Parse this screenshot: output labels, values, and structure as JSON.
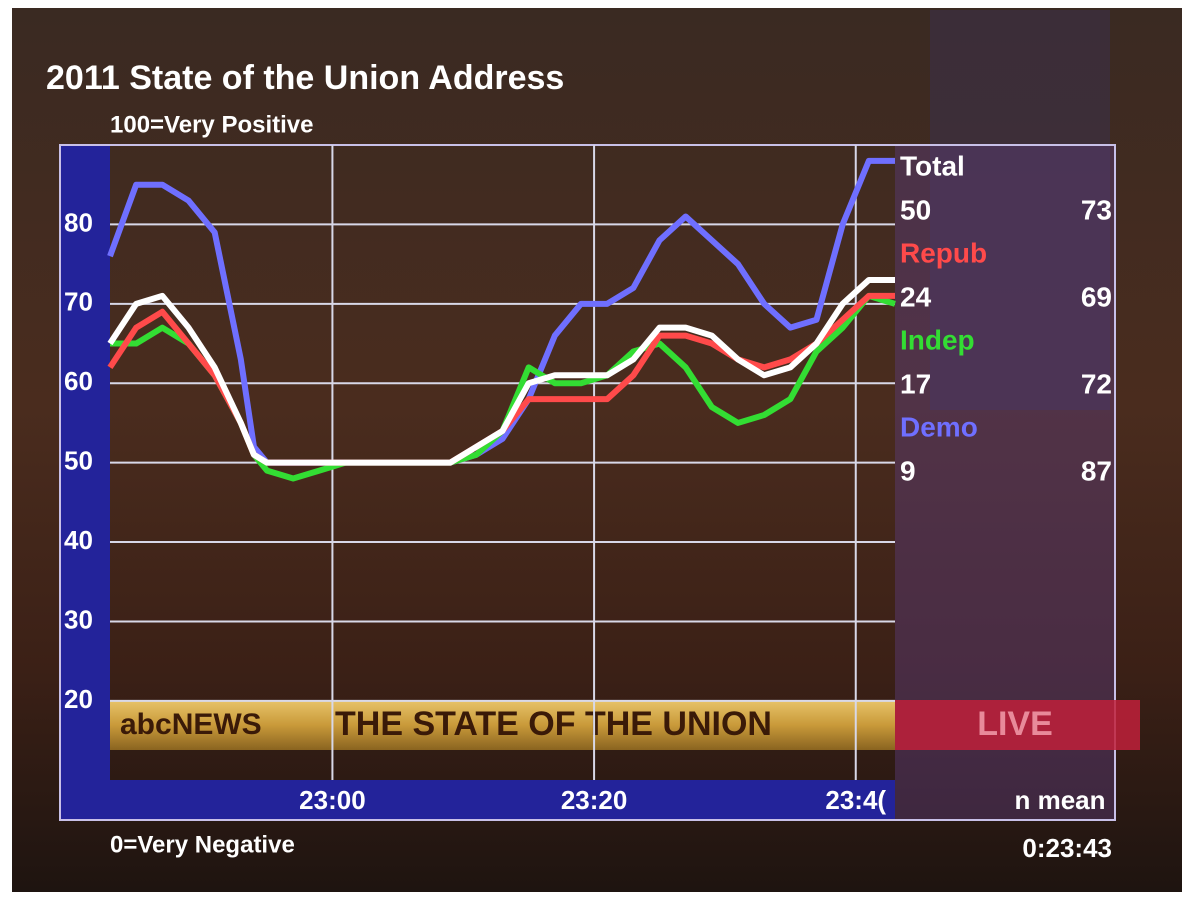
{
  "chart_data": {
    "type": "line",
    "title": "2011 State of the Union Address",
    "top_label": "100=Very Positive",
    "bottom_label": "0=Very Negative",
    "x": [
      1363,
      1365,
      1367,
      1369,
      1371,
      1373,
      1374,
      1375,
      1377,
      1379,
      1381,
      1383,
      1385,
      1387,
      1389,
      1391,
      1393,
      1395,
      1397,
      1399,
      1401,
      1403,
      1405,
      1407,
      1409,
      1411,
      1413,
      1415,
      1417,
      1419,
      1421,
      1423
    ],
    "xlim": [
      1363,
      1423
    ],
    "xticks": [
      {
        "value": 1380,
        "label": "23:00"
      },
      {
        "value": 1400,
        "label": "23:20"
      },
      {
        "value": 1420,
        "label": "23:4("
      }
    ],
    "ylim": [
      5,
      90
    ],
    "yticks": [
      20,
      30,
      40,
      50,
      60,
      70,
      80
    ],
    "grid": true,
    "stats_header": "n mean",
    "series": [
      {
        "name": "Demo",
        "color": "#6f6fff",
        "n": 9,
        "mean": 87,
        "values": [
          76,
          85,
          85,
          83,
          79,
          63,
          52,
          50,
          50,
          50,
          50,
          50,
          50,
          50,
          50,
          51,
          53,
          58,
          66,
          70,
          70,
          72,
          78,
          81,
          78,
          75,
          70,
          67,
          68,
          80,
          88,
          88
        ]
      },
      {
        "name": "Indep",
        "color": "#33dd33",
        "n": 17,
        "mean": 72,
        "values": [
          65,
          65,
          67,
          65,
          61,
          55,
          51,
          49,
          48,
          49,
          50,
          50,
          50,
          50,
          50,
          51,
          54,
          62,
          60,
          60,
          61,
          64,
          65,
          62,
          57,
          55,
          56,
          58,
          64,
          67,
          71,
          70
        ]
      },
      {
        "name": "Repub",
        "color": "#ff4a4a",
        "n": 24,
        "mean": 69,
        "values": [
          62,
          67,
          69,
          65,
          61,
          55,
          51,
          50,
          50,
          50,
          50,
          50,
          50,
          50,
          50,
          52,
          54,
          58,
          58,
          58,
          58,
          61,
          66,
          66,
          65,
          63,
          62,
          63,
          65,
          68,
          71,
          71
        ]
      },
      {
        "name": "Total",
        "color": "#ffffff",
        "n": 50,
        "mean": 73,
        "values": [
          65,
          70,
          71,
          67,
          62,
          55,
          51,
          50,
          50,
          50,
          50,
          50,
          50,
          50,
          50,
          52,
          54,
          60,
          61,
          61,
          61,
          63,
          67,
          67,
          66,
          63,
          61,
          62,
          65,
          70,
          73,
          73
        ]
      }
    ]
  },
  "broadcast": {
    "network": "abcNEWS",
    "banner": "THE STATE OF THE UNION",
    "live": "LIVE",
    "timer": "0:23:43"
  }
}
